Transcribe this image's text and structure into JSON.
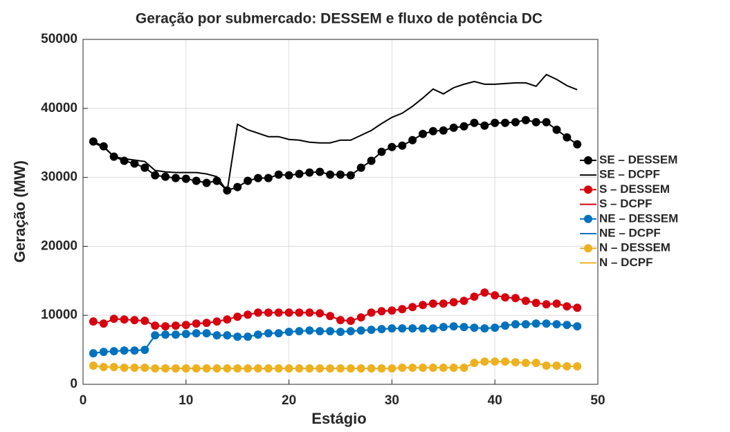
{
  "chart_data": {
    "type": "line",
    "title": "Geração por submercado: DESSEM e fluxo de potência DC",
    "x_label": "Estágio",
    "y_label": "Geração (MW)",
    "x": [
      1,
      2,
      3,
      4,
      5,
      6,
      7,
      8,
      9,
      10,
      11,
      12,
      13,
      14,
      15,
      16,
      17,
      18,
      19,
      20,
      21,
      22,
      23,
      24,
      25,
      26,
      27,
      28,
      29,
      30,
      31,
      32,
      33,
      34,
      35,
      36,
      37,
      38,
      39,
      40,
      41,
      42,
      43,
      44,
      45,
      46,
      47,
      48
    ],
    "series": [
      {
        "name": "SE – DESSEM",
        "color": "#000000",
        "marker": true,
        "values": [
          35200,
          34500,
          33000,
          32400,
          32000,
          31400,
          30300,
          30100,
          29900,
          29800,
          29500,
          29200,
          29500,
          28100,
          28600,
          29500,
          29900,
          29900,
          30400,
          30300,
          30500,
          30700,
          30800,
          30400,
          30400,
          30300,
          31400,
          32400,
          33700,
          34400,
          34600,
          35400,
          36300,
          36700,
          36800,
          37200,
          37400,
          37900,
          37500,
          37900,
          37900,
          38000,
          38300,
          38000,
          38000,
          36900,
          35800,
          34800
        ]
      },
      {
        "name": "SE – DCPF",
        "color": "#000000",
        "marker": false,
        "values": [
          35000,
          34400,
          33000,
          32700,
          32500,
          32300,
          31000,
          30800,
          30700,
          30700,
          30700,
          30500,
          30100,
          28000,
          37700,
          36900,
          36400,
          35900,
          35900,
          35500,
          35400,
          35100,
          35000,
          35000,
          35400,
          35400,
          36100,
          36800,
          37800,
          38700,
          39300,
          40300,
          41500,
          42800,
          42100,
          43000,
          43500,
          43900,
          43500,
          43500,
          43600,
          43700,
          43700,
          43200,
          44900,
          44200,
          43300,
          42700
        ]
      },
      {
        "name": "S – DESSEM",
        "color": "#d7000f",
        "marker": true,
        "values": [
          9100,
          8800,
          9500,
          9400,
          9300,
          9200,
          8500,
          8400,
          8500,
          8600,
          8800,
          8900,
          9100,
          9400,
          9800,
          10100,
          10400,
          10400,
          10400,
          10400,
          10400,
          10400,
          10300,
          9900,
          9300,
          9200,
          9700,
          10400,
          10600,
          10700,
          10900,
          11200,
          11500,
          11700,
          11700,
          11900,
          12100,
          12700,
          13300,
          12900,
          12600,
          12500,
          12100,
          11800,
          11600,
          11700,
          11300,
          11100
        ]
      },
      {
        "name": "S – DCPF",
        "color": "#d7000f",
        "marker": false,
        "values": [
          9100,
          8800,
          9500,
          9400,
          9300,
          9200,
          8500,
          8400,
          8500,
          8600,
          8800,
          8900,
          9100,
          9400,
          9800,
          10100,
          10400,
          10400,
          10400,
          10400,
          10400,
          10400,
          10300,
          9900,
          9300,
          9200,
          9700,
          10400,
          10600,
          10700,
          10900,
          11200,
          11500,
          11700,
          11700,
          11900,
          12100,
          12700,
          13300,
          12900,
          12600,
          12500,
          12100,
          11800,
          11600,
          11700,
          11300,
          11100
        ]
      },
      {
        "name": "NE – DESSEM",
        "color": "#0072bd",
        "marker": true,
        "values": [
          4500,
          4700,
          4800,
          4900,
          4900,
          5000,
          7100,
          7200,
          7200,
          7300,
          7400,
          7400,
          7100,
          7100,
          6900,
          6900,
          7200,
          7400,
          7400,
          7600,
          7700,
          7800,
          7700,
          7700,
          7600,
          7700,
          7800,
          7900,
          8000,
          8100,
          8100,
          8100,
          8100,
          8100,
          8300,
          8400,
          8300,
          8200,
          8100,
          8200,
          8500,
          8700,
          8700,
          8800,
          8800,
          8700,
          8600,
          8400
        ]
      },
      {
        "name": "NE – DCPF",
        "color": "#0072bd",
        "marker": false,
        "values": [
          4500,
          4700,
          4800,
          4900,
          4900,
          5000,
          7100,
          7200,
          7200,
          7300,
          7400,
          7400,
          7100,
          7100,
          6900,
          6900,
          7200,
          7400,
          7400,
          7600,
          7700,
          7800,
          7700,
          7700,
          7600,
          7700,
          7800,
          7900,
          8000,
          8100,
          8100,
          8100,
          8100,
          8100,
          8300,
          8400,
          8300,
          8200,
          8100,
          8200,
          8500,
          8700,
          8700,
          8800,
          8800,
          8700,
          8600,
          8400
        ]
      },
      {
        "name": "N – DESSEM",
        "color": "#edb120",
        "marker": true,
        "values": [
          2700,
          2500,
          2500,
          2400,
          2400,
          2400,
          2300,
          2300,
          2300,
          2300,
          2300,
          2300,
          2300,
          2300,
          2300,
          2300,
          2300,
          2300,
          2300,
          2300,
          2300,
          2300,
          2300,
          2300,
          2300,
          2300,
          2300,
          2300,
          2300,
          2300,
          2400,
          2400,
          2400,
          2400,
          2400,
          2400,
          2400,
          3100,
          3300,
          3300,
          3300,
          3200,
          3100,
          3100,
          2700,
          2700,
          2600,
          2600
        ]
      },
      {
        "name": "N – DCPF",
        "color": "#edb120",
        "marker": false,
        "values": [
          2700,
          2500,
          2500,
          2400,
          2400,
          2400,
          2300,
          2300,
          2300,
          2300,
          2300,
          2300,
          2300,
          2300,
          2300,
          2300,
          2300,
          2300,
          2300,
          2300,
          2300,
          2300,
          2300,
          2300,
          2300,
          2300,
          2300,
          2300,
          2300,
          2300,
          2400,
          2400,
          2400,
          2400,
          2400,
          2400,
          2400,
          3100,
          3300,
          3300,
          3300,
          3200,
          3100,
          3100,
          2700,
          2700,
          2600,
          2600
        ]
      }
    ],
    "xlim": [
      0,
      50
    ],
    "xticks": [
      0,
      10,
      20,
      30,
      40,
      50
    ],
    "ylim": [
      0,
      50000
    ],
    "yticks": [
      0,
      10000,
      20000,
      30000,
      40000,
      50000
    ],
    "grid": true,
    "legend": "east-outside"
  }
}
